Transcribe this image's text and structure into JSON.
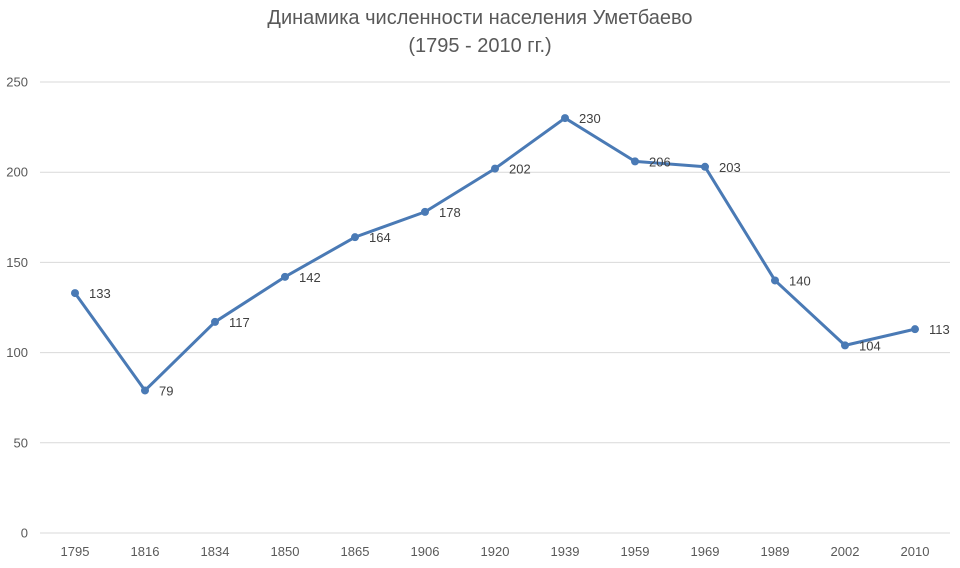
{
  "chart_data": {
    "type": "line",
    "title": "Динамика численности населения Уметбаево",
    "subtitle": "(1795 - 2010 гг.)",
    "xlabel": "",
    "ylabel": "",
    "categories": [
      "1795",
      "1816",
      "1834",
      "1850",
      "1865",
      "1906",
      "1920",
      "1939",
      "1959",
      "1969",
      "1989",
      "2002",
      "2010"
    ],
    "series": [
      {
        "values": [
          133,
          79,
          117,
          142,
          164,
          178,
          202,
          230,
          206,
          203,
          140,
          104,
          113
        ]
      }
    ],
    "ylim": [
      0,
      250
    ],
    "yticks": [
      "0",
      "50",
      "100",
      "150",
      "200",
      "250"
    ],
    "grid": true,
    "legend": "none",
    "colors": {
      "line": "#4a7ab5",
      "grid": "#d9d9d9"
    }
  }
}
